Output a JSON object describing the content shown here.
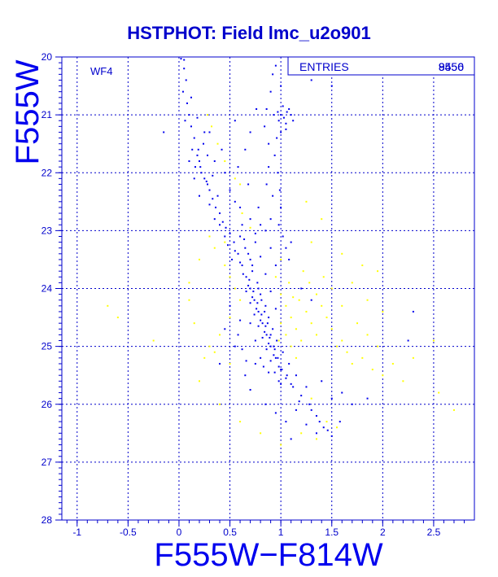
{
  "chart_data": {
    "type": "scatter",
    "title": "HSTPHOT: Field lmc_u2o901",
    "xlabel": "F555W−F814W",
    "ylabel": "F555W",
    "xlim": [
      -1.15,
      2.9
    ],
    "ylim": [
      28,
      20
    ],
    "y_inverted": true,
    "x_ticks": [
      "-1",
      "-0.5",
      "0",
      "0.5",
      "1",
      "1.5",
      "2",
      "2.5"
    ],
    "y_ticks": [
      "20",
      "21",
      "22",
      "23",
      "24",
      "25",
      "26",
      "27",
      "28"
    ],
    "grid": true,
    "annotation": "WF4",
    "stats_box": {
      "label": "ENTRIES",
      "value_a": "9456",
      "value_b": "8550"
    },
    "series": [
      {
        "color": "#0000ee",
        "points": [
          [
            0.02,
            20.03
          ],
          [
            0.05,
            20.05
          ],
          [
            0.05,
            20.2
          ],
          [
            0.07,
            20.4
          ],
          [
            0.04,
            20.6
          ],
          [
            0.08,
            20.8
          ],
          [
            0.1,
            21.0
          ],
          [
            0.12,
            21.2
          ],
          [
            0.15,
            21.4
          ],
          [
            -0.15,
            21.3
          ],
          [
            0.13,
            21.6
          ],
          [
            0.18,
            21.7
          ],
          [
            0.16,
            21.9
          ],
          [
            0.2,
            21.8
          ],
          [
            0.22,
            22.0
          ],
          [
            0.25,
            22.1
          ],
          [
            0.28,
            22.2
          ],
          [
            0.24,
            21.5
          ],
          [
            0.3,
            22.3
          ],
          [
            0.33,
            22.45
          ],
          [
            0.36,
            22.6
          ],
          [
            0.4,
            22.7
          ],
          [
            0.43,
            22.85
          ],
          [
            0.46,
            22.95
          ],
          [
            0.5,
            23.05
          ],
          [
            0.54,
            23.2
          ],
          [
            0.58,
            23.4
          ],
          [
            0.62,
            23.6
          ],
          [
            0.66,
            23.8
          ],
          [
            0.7,
            24.0
          ],
          [
            0.74,
            24.2
          ],
          [
            0.78,
            24.4
          ],
          [
            0.82,
            24.6
          ],
          [
            0.86,
            24.8
          ],
          [
            0.9,
            25.0
          ],
          [
            0.95,
            25.2
          ],
          [
            1.0,
            25.4
          ],
          [
            1.05,
            25.55
          ],
          [
            1.12,
            25.7
          ],
          [
            1.2,
            25.85
          ],
          [
            1.28,
            26.0
          ],
          [
            1.35,
            26.2
          ],
          [
            1.42,
            26.4
          ],
          [
            1.5,
            26.55
          ],
          [
            1.1,
            26.6
          ],
          [
            0.6,
            23.1
          ],
          [
            0.65,
            23.3
          ],
          [
            0.7,
            23.5
          ],
          [
            0.72,
            23.7
          ],
          [
            0.77,
            23.9
          ],
          [
            0.8,
            24.1
          ],
          [
            0.85,
            24.3
          ],
          [
            0.88,
            24.5
          ],
          [
            0.92,
            24.7
          ],
          [
            0.96,
            24.9
          ],
          [
            1.02,
            25.1
          ],
          [
            1.08,
            25.3
          ],
          [
            0.98,
            25.6
          ],
          [
            1.15,
            25.5
          ],
          [
            1.25,
            25.7
          ],
          [
            0.55,
            23.35
          ],
          [
            0.6,
            23.55
          ],
          [
            0.63,
            23.75
          ],
          [
            0.68,
            23.95
          ],
          [
            0.72,
            24.15
          ],
          [
            0.76,
            24.35
          ],
          [
            0.8,
            24.55
          ],
          [
            0.84,
            24.75
          ],
          [
            0.88,
            24.95
          ],
          [
            0.93,
            25.15
          ],
          [
            0.98,
            25.35
          ],
          [
            0.88,
            25.45
          ],
          [
            0.8,
            25.2
          ],
          [
            0.75,
            24.9
          ],
          [
            1.18,
            25.95
          ],
          [
            1.3,
            26.1
          ],
          [
            1.38,
            26.3
          ],
          [
            1.46,
            26.45
          ],
          [
            1.58,
            26.3
          ],
          [
            0.75,
            25.3
          ],
          [
            0.35,
            22.8
          ],
          [
            0.4,
            22.9
          ],
          [
            0.45,
            23.1
          ],
          [
            0.48,
            23.25
          ],
          [
            0.52,
            23.5
          ],
          [
            0.3,
            22.55
          ],
          [
            0.38,
            22.4
          ],
          [
            0.27,
            22.15
          ],
          [
            0.21,
            21.9
          ],
          [
            0.19,
            21.6
          ],
          [
            0.6,
            22.6
          ],
          [
            0.7,
            22.8
          ],
          [
            0.68,
            22.2
          ],
          [
            0.62,
            22.9
          ],
          [
            0.55,
            22.5
          ],
          [
            0.78,
            22.6
          ],
          [
            0.8,
            22.9
          ],
          [
            0.75,
            23.2
          ],
          [
            0.85,
            23.0
          ],
          [
            0.9,
            23.3
          ],
          [
            0.95,
            23.6
          ],
          [
            0.92,
            22.4
          ],
          [
            0.88,
            21.5
          ],
          [
            0.88,
            21.9
          ],
          [
            0.86,
            22.2
          ],
          [
            0.9,
            22.8
          ],
          [
            0.84,
            21.2
          ],
          [
            0.86,
            20.9
          ],
          [
            0.9,
            20.6
          ],
          [
            0.92,
            20.3
          ],
          [
            0.95,
            20.15
          ],
          [
            1.0,
            20.5
          ],
          [
            1.0,
            21.0
          ],
          [
            1.03,
            21.05
          ],
          [
            1.06,
            20.95
          ],
          [
            0.98,
            21.1
          ],
          [
            1.05,
            21.15
          ],
          [
            1.08,
            20.9
          ],
          [
            0.97,
            20.95
          ],
          [
            1.1,
            21.0
          ],
          [
            1.02,
            20.85
          ],
          [
            1.05,
            21.25
          ],
          [
            0.93,
            21.0
          ],
          [
            1.12,
            21.1
          ],
          [
            1.0,
            21.3
          ],
          [
            0.96,
            21.4
          ],
          [
            0.94,
            21.7
          ],
          [
            0.97,
            22.0
          ],
          [
            0.99,
            22.3
          ],
          [
            1.0,
            22.6
          ],
          [
            0.98,
            22.9
          ],
          [
            1.02,
            23.1
          ],
          [
            1.05,
            23.3
          ],
          [
            1.08,
            23.5
          ],
          [
            1.1,
            23.2
          ],
          [
            0.66,
            24.05
          ],
          [
            0.7,
            24.25
          ],
          [
            0.74,
            24.45
          ],
          [
            0.78,
            24.65
          ],
          [
            0.82,
            24.85
          ],
          [
            0.86,
            25.05
          ],
          [
            0.9,
            25.25
          ],
          [
            0.94,
            25.45
          ],
          [
            1.0,
            25.65
          ],
          [
            0.83,
            25.35
          ],
          [
            1.6,
            25.8
          ],
          [
            1.7,
            26.0
          ],
          [
            1.85,
            25.9
          ],
          [
            1.4,
            25.6
          ],
          [
            1.5,
            25.9
          ],
          [
            2.3,
            24.4
          ],
          [
            2.25,
            24.9
          ],
          [
            1.2,
            24.0
          ],
          [
            1.3,
            24.2
          ],
          [
            0.5,
            24.3
          ],
          [
            0.45,
            24.7
          ],
          [
            0.55,
            25.0
          ],
          [
            0.4,
            25.3
          ],
          [
            0.65,
            25.5
          ],
          [
            0.7,
            25.75
          ],
          [
            0.85,
            26.0
          ],
          [
            0.95,
            26.15
          ],
          [
            1.05,
            26.3
          ],
          [
            1.15,
            26.1
          ],
          [
            1.25,
            26.35
          ],
          [
            1.35,
            26.5
          ],
          [
            0.75,
            23.05
          ],
          [
            0.8,
            23.45
          ],
          [
            0.85,
            23.75
          ],
          [
            0.9,
            24.05
          ],
          [
            0.95,
            24.35
          ],
          [
            0.6,
            24.55
          ],
          [
            0.58,
            24.8
          ],
          [
            0.62,
            25.05
          ],
          [
            0.66,
            25.25
          ],
          [
            0.7,
            24.6
          ],
          [
            0.2,
            22.4
          ],
          [
            0.15,
            22.1
          ],
          [
            0.1,
            21.8
          ],
          [
            0.06,
            21.1
          ],
          [
            0.3,
            21.3
          ],
          [
            0.35,
            21.8
          ],
          [
            0.45,
            22.0
          ],
          [
            0.5,
            22.3
          ],
          [
            0.42,
            21.6
          ],
          [
            0.58,
            21.9
          ],
          [
            0.65,
            21.6
          ],
          [
            0.7,
            21.3
          ],
          [
            0.55,
            21.1
          ],
          [
            0.76,
            20.9
          ],
          [
            0.12,
            20.7
          ],
          [
            0.18,
            21.05
          ],
          [
            0.25,
            21.3
          ],
          [
            0.28,
            21.7
          ],
          [
            0.33,
            22.05
          ],
          [
            1.4,
            20.2
          ],
          [
            1.2,
            20.3
          ],
          [
            1.1,
            20.1
          ],
          [
            1.3,
            20.4
          ],
          [
            1.5,
            20.5
          ],
          [
            0.78,
            24.0
          ],
          [
            0.81,
            24.2
          ],
          [
            0.84,
            24.4
          ],
          [
            0.87,
            24.6
          ],
          [
            0.9,
            24.8
          ],
          [
            0.93,
            25.0
          ],
          [
            0.97,
            25.2
          ],
          [
            1.01,
            25.4
          ],
          [
            1.06,
            25.5
          ],
          [
            1.1,
            25.65
          ],
          [
            0.72,
            23.6
          ],
          [
            0.68,
            23.4
          ],
          [
            0.64,
            23.15
          ],
          [
            0.69,
            23.85
          ],
          [
            0.73,
            24.05
          ],
          [
            0.77,
            24.25
          ],
          [
            0.81,
            24.45
          ],
          [
            0.85,
            24.65
          ],
          [
            0.89,
            24.85
          ],
          [
            0.94,
            25.05
          ]
        ]
      },
      {
        "color": "#ffff00",
        "points": [
          [
            0.28,
            21.0
          ],
          [
            0.32,
            21.2
          ],
          [
            0.38,
            21.5
          ],
          [
            0.45,
            21.8
          ],
          [
            0.55,
            22.1
          ],
          [
            0.6,
            22.2
          ],
          [
            0.3,
            23.1
          ],
          [
            0.35,
            23.3
          ],
          [
            0.45,
            23.6
          ],
          [
            0.5,
            23.8
          ],
          [
            0.55,
            24.0
          ],
          [
            0.6,
            24.2
          ],
          [
            0.5,
            24.5
          ],
          [
            0.4,
            24.8
          ],
          [
            0.3,
            25.0
          ],
          [
            0.25,
            25.2
          ],
          [
            0.35,
            25.1
          ],
          [
            0.5,
            25.3
          ],
          [
            1.0,
            24.1
          ],
          [
            1.05,
            24.3
          ],
          [
            1.1,
            24.5
          ],
          [
            1.15,
            24.7
          ],
          [
            1.2,
            24.9
          ],
          [
            1.25,
            24.4
          ],
          [
            1.3,
            24.6
          ],
          [
            1.35,
            24.8
          ],
          [
            1.4,
            24.3
          ],
          [
            1.45,
            24.5
          ],
          [
            1.5,
            24.7
          ],
          [
            1.55,
            25.0
          ],
          [
            1.6,
            24.9
          ],
          [
            1.65,
            25.1
          ],
          [
            1.7,
            25.3
          ],
          [
            1.8,
            25.2
          ],
          [
            1.9,
            25.4
          ],
          [
            2.0,
            25.5
          ],
          [
            1.75,
            24.6
          ],
          [
            1.85,
            24.8
          ],
          [
            1.95,
            25.0
          ],
          [
            2.1,
            25.3
          ],
          [
            2.2,
            25.6
          ],
          [
            2.3,
            25.2
          ],
          [
            2.5,
            24.9
          ],
          [
            2.55,
            25.8
          ],
          [
            2.7,
            26.1
          ],
          [
            1.2,
            26.5
          ],
          [
            1.35,
            26.6
          ],
          [
            1.45,
            26.3
          ],
          [
            1.55,
            26.4
          ],
          [
            1.3,
            25.9
          ],
          [
            0.95,
            23.8
          ],
          [
            1.0,
            23.5
          ],
          [
            1.08,
            23.9
          ],
          [
            1.12,
            24.15
          ],
          [
            1.18,
            24.2
          ],
          [
            1.22,
            23.7
          ],
          [
            1.28,
            23.9
          ],
          [
            1.35,
            24.1
          ],
          [
            1.42,
            23.8
          ],
          [
            1.5,
            24.0
          ],
          [
            1.6,
            24.3
          ],
          [
            1.7,
            23.9
          ],
          [
            1.85,
            24.2
          ],
          [
            1.95,
            23.7
          ],
          [
            2.0,
            24.4
          ],
          [
            1.0,
            24.6
          ],
          [
            1.05,
            24.8
          ],
          [
            1.1,
            25.0
          ],
          [
            1.15,
            25.2
          ],
          [
            0.98,
            24.9
          ],
          [
            -0.7,
            24.3
          ],
          [
            -0.6,
            24.5
          ],
          [
            -0.25,
            24.9
          ],
          [
            0.1,
            24.2
          ],
          [
            0.2,
            25.6
          ],
          [
            0.4,
            26.0
          ],
          [
            0.6,
            26.3
          ],
          [
            0.8,
            26.5
          ],
          [
            1.0,
            26.7
          ],
          [
            0.2,
            23.5
          ],
          [
            0.1,
            23.9
          ],
          [
            0.15,
            24.6
          ],
          [
            0.45,
            23.2
          ],
          [
            0.62,
            22.7
          ],
          [
            0.7,
            22.95
          ],
          [
            1.25,
            22.5
          ],
          [
            1.4,
            22.8
          ],
          [
            1.3,
            23.2
          ],
          [
            1.6,
            23.4
          ],
          [
            1.8,
            23.6
          ]
        ]
      }
    ]
  }
}
